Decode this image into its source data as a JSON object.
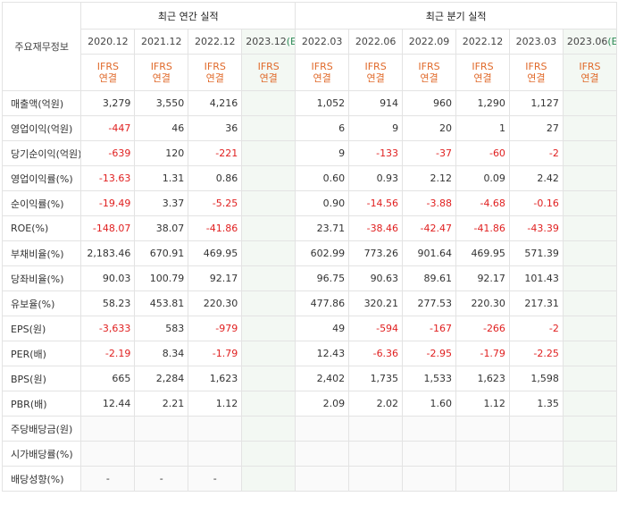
{
  "header": {
    "corner_label": "주요재무정보",
    "annual_group": "최근 연간 실적",
    "quarterly_group": "최근 분기 실적",
    "annual_periods": [
      "2020.12",
      "2021.12",
      "2022.12",
      "2023.12"
    ],
    "annual_est_flag": "(E)",
    "quarterly_periods": [
      "2022.03",
      "2022.06",
      "2022.09",
      "2022.12",
      "2023.03",
      "2023.06"
    ],
    "quarterly_est_flag": "(E)",
    "ifrs_line1": "IFRS",
    "ifrs_line2": "연결"
  },
  "rows": [
    {
      "label": "매출액(억원)",
      "annual": [
        "3,279",
        "3,550",
        "4,216",
        ""
      ],
      "quarterly": [
        "1,052",
        "914",
        "960",
        "1,290",
        "1,127",
        ""
      ]
    },
    {
      "label": "영업이익(억원)",
      "annual": [
        "-447",
        "46",
        "36",
        ""
      ],
      "quarterly": [
        "6",
        "9",
        "20",
        "1",
        "27",
        ""
      ]
    },
    {
      "label": "당기순이익(억원)",
      "annual": [
        "-639",
        "120",
        "-221",
        ""
      ],
      "quarterly": [
        "9",
        "-133",
        "-37",
        "-60",
        "-2",
        ""
      ]
    },
    {
      "label": "영업이익률(%)",
      "annual": [
        "-13.63",
        "1.31",
        "0.86",
        ""
      ],
      "quarterly": [
        "0.60",
        "0.93",
        "2.12",
        "0.09",
        "2.42",
        ""
      ]
    },
    {
      "label": "순이익률(%)",
      "annual": [
        "-19.49",
        "3.37",
        "-5.25",
        ""
      ],
      "quarterly": [
        "0.90",
        "-14.56",
        "-3.88",
        "-4.68",
        "-0.16",
        ""
      ]
    },
    {
      "label": "ROE(%)",
      "annual": [
        "-148.07",
        "38.07",
        "-41.86",
        ""
      ],
      "quarterly": [
        "23.71",
        "-38.46",
        "-42.47",
        "-41.86",
        "-43.39",
        ""
      ]
    },
    {
      "label": "부채비율(%)",
      "annual": [
        "2,183.46",
        "670.91",
        "469.95",
        ""
      ],
      "quarterly": [
        "602.99",
        "773.26",
        "901.64",
        "469.95",
        "571.39",
        ""
      ]
    },
    {
      "label": "당좌비율(%)",
      "annual": [
        "90.03",
        "100.79",
        "92.17",
        ""
      ],
      "quarterly": [
        "96.75",
        "90.63",
        "89.61",
        "92.17",
        "101.43",
        ""
      ]
    },
    {
      "label": "유보율(%)",
      "annual": [
        "58.23",
        "453.81",
        "220.30",
        ""
      ],
      "quarterly": [
        "477.86",
        "320.21",
        "277.53",
        "220.30",
        "217.31",
        ""
      ]
    },
    {
      "label": "EPS(원)",
      "annual": [
        "-3,633",
        "583",
        "-979",
        ""
      ],
      "quarterly": [
        "49",
        "-594",
        "-167",
        "-266",
        "-2",
        ""
      ]
    },
    {
      "label": "PER(배)",
      "annual": [
        "-2.19",
        "8.34",
        "-1.79",
        ""
      ],
      "quarterly": [
        "12.43",
        "-6.36",
        "-2.95",
        "-1.79",
        "-2.25",
        ""
      ]
    },
    {
      "label": "BPS(원)",
      "annual": [
        "665",
        "2,284",
        "1,623",
        ""
      ],
      "quarterly": [
        "2,402",
        "1,735",
        "1,533",
        "1,623",
        "1,598",
        ""
      ]
    },
    {
      "label": "PBR(배)",
      "annual": [
        "12.44",
        "2.21",
        "1.12",
        ""
      ],
      "quarterly": [
        "2.09",
        "2.02",
        "1.60",
        "1.12",
        "1.35",
        ""
      ]
    },
    {
      "label": "주당배당금(원)",
      "annual": [
        "",
        "",
        "",
        ""
      ],
      "quarterly": [
        "",
        "",
        "",
        "",
        "",
        ""
      ]
    },
    {
      "label": "시가배당률(%)",
      "annual": [
        "",
        "",
        "",
        ""
      ],
      "quarterly": [
        "",
        "",
        "",
        "",
        "",
        ""
      ]
    },
    {
      "label": "배당성향(%)",
      "annual": [
        "-",
        "-",
        "-",
        ""
      ],
      "quarterly": [
        "",
        "",
        "",
        "",
        "",
        ""
      ]
    }
  ],
  "colors": {
    "negative": "#e02020",
    "ifrs": "#e06a2b",
    "estimate_bg": "#f3f8f3",
    "estimate_mark": "#2e8b57"
  }
}
